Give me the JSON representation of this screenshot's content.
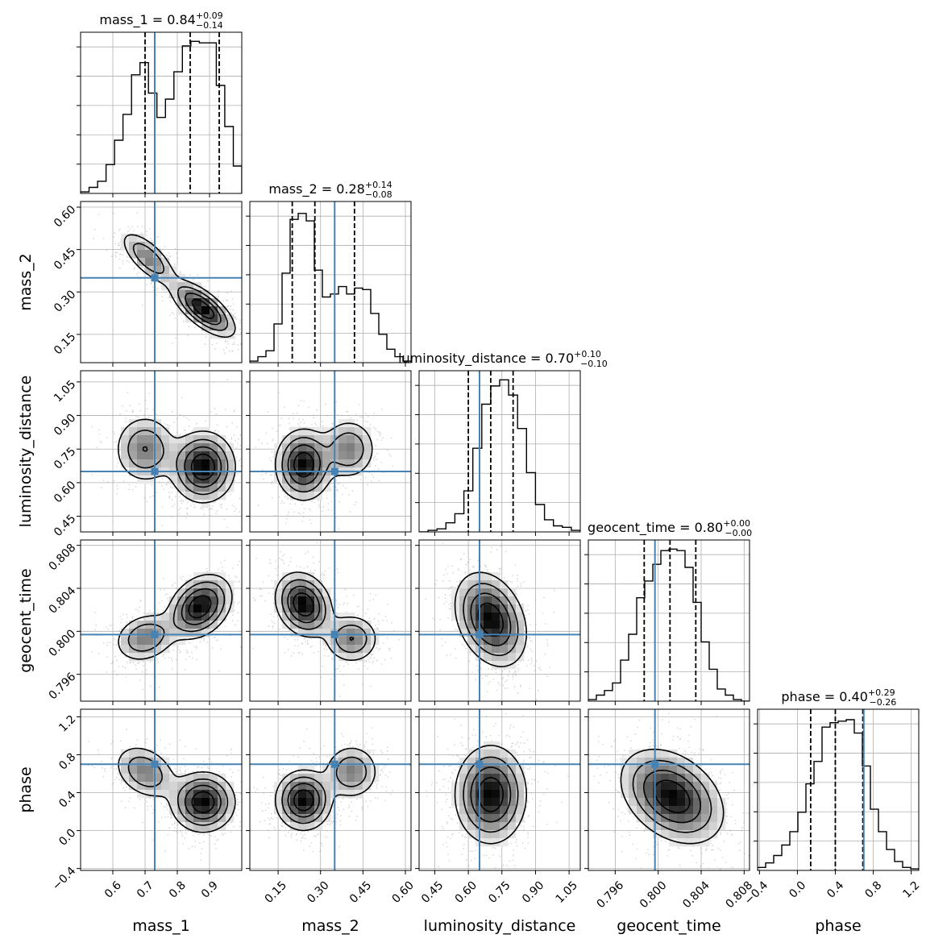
{
  "chart_data": {
    "type": "corner",
    "parameters": [
      {
        "name": "mass_1",
        "range": [
          0.5,
          1.0
        ],
        "truth": 0.73,
        "median": 0.84,
        "lo": 0.7,
        "hi": 0.93,
        "title_main": "mass_1 = 0.84",
        "title_plus": "+0.09",
        "title_minus": "−0.14",
        "ticks": [
          0.6,
          0.7,
          0.8,
          0.9
        ],
        "tick_labels": [
          "0.6",
          "0.7",
          "0.8",
          "0.9"
        ],
        "hist": [
          0.01,
          0.04,
          0.08,
          0.19,
          0.35,
          0.52,
          0.78,
          0.86,
          0.66,
          0.5,
          0.62,
          0.8,
          0.97,
          1.0,
          0.99,
          0.99,
          0.71,
          0.44,
          0.18
        ],
        "ylim": 1.06
      },
      {
        "name": "mass_2",
        "range": [
          0.05,
          0.62
        ],
        "truth": 0.35,
        "median": 0.28,
        "lo": 0.2,
        "hi": 0.42,
        "title_main": "mass_2 = 0.28",
        "title_plus": "+0.14",
        "title_minus": "−0.08",
        "ticks": [
          0.15,
          0.3,
          0.45,
          0.6
        ],
        "tick_labels": [
          "0.15",
          "0.30",
          "0.45",
          "0.60"
        ],
        "hist": [
          0.01,
          0.04,
          0.08,
          0.26,
          0.6,
          0.96,
          1.0,
          0.95,
          0.62,
          0.44,
          0.46,
          0.51,
          0.46,
          0.5,
          0.49,
          0.33,
          0.19,
          0.09,
          0.04,
          0.01
        ],
        "ylim": 1.08
      },
      {
        "name": "luminosity_distance",
        "range": [
          0.38,
          1.1
        ],
        "truth": 0.65,
        "median": 0.7,
        "lo": 0.6,
        "hi": 0.8,
        "title_main": "luminosity_distance = 0.70",
        "title_plus": "+0.10",
        "title_minus": "−0.10",
        "ticks": [
          0.45,
          0.6,
          0.75,
          0.9,
          1.05
        ],
        "tick_labels": [
          "0.45",
          "0.60",
          "0.75",
          "0.90",
          "1.05"
        ],
        "hist": [
          0.0,
          0.01,
          0.02,
          0.06,
          0.12,
          0.27,
          0.55,
          0.84,
          0.96,
          1.0,
          0.9,
          0.68,
          0.39,
          0.18,
          0.08,
          0.04,
          0.03,
          0.01
        ],
        "ylim": 1.06
      },
      {
        "name": "geocent_time",
        "range": [
          0.7935,
          0.8085
        ],
        "truth": 0.7997,
        "median": 0.8011,
        "lo": 0.7987,
        "hi": 0.8035,
        "title_main": "geocent_time = 0.80",
        "title_plus": "+0.00",
        "title_minus": "−0.00",
        "ticks": [
          0.796,
          0.8,
          0.804,
          0.808
        ],
        "tick_labels": [
          "0.796",
          "0.800",
          "0.804",
          "0.808"
        ],
        "hist": [
          0.01,
          0.04,
          0.07,
          0.12,
          0.27,
          0.44,
          0.68,
          0.79,
          0.9,
          0.99,
          1.0,
          0.99,
          0.88,
          0.65,
          0.39,
          0.21,
          0.08,
          0.04,
          0.01,
          0.0
        ],
        "ylim": 1.06
      },
      {
        "name": "phase",
        "range": [
          -0.42,
          1.28
        ],
        "truth": 0.7,
        "median": 0.4,
        "lo": 0.14,
        "hi": 0.69,
        "title_main": "phase = 0.40",
        "title_plus": "+0.29",
        "title_minus": "−0.26",
        "ticks": [
          -0.4,
          0.0,
          0.4,
          0.8,
          1.2
        ],
        "tick_labels": [
          "−0.4",
          "0.0",
          "0.4",
          "0.8",
          "1.2"
        ],
        "hist": [
          0.02,
          0.05,
          0.1,
          0.17,
          0.26,
          0.39,
          0.58,
          0.73,
          0.96,
          0.99,
          1.0,
          1.01,
          0.92,
          0.7,
          0.41,
          0.26,
          0.14,
          0.06,
          0.02,
          0.01
        ],
        "ylim": 1.08
      }
    ],
    "density_modes": [
      [
        0.03,
        0.0,
        0.0,
        0.0,
        0.0
      ],
      [
        0.69,
        0.36,
        0.0,
        0.0,
        0.0
      ],
      [
        0.75,
        0.33,
        0.66,
        0.0,
        0.0
      ],
      [
        0.87,
        0.24,
        0.65,
        0.0,
        0.0
      ],
      [
        0.88,
        0.22,
        0.68,
        0.8025,
        0.3
      ]
    ]
  }
}
